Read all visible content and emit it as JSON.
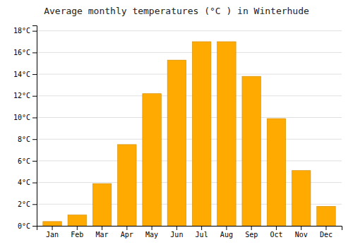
{
  "chart_data": {
    "type": "bar",
    "title": "Average monthly temperatures (°C ) in Winterhude",
    "categories": [
      "Jan",
      "Feb",
      "Mar",
      "Apr",
      "May",
      "Jun",
      "Jul",
      "Aug",
      "Sep",
      "Oct",
      "Nov",
      "Dec"
    ],
    "values": [
      0.4,
      1.0,
      3.9,
      7.5,
      12.2,
      15.3,
      17.0,
      17.0,
      13.8,
      9.9,
      5.1,
      1.8
    ],
    "color": "#FFAA00",
    "ylim": [
      0,
      18.5
    ],
    "yticks": [
      {
        "value": 0,
        "label": "0°C"
      },
      {
        "value": 2,
        "label": "2°C"
      },
      {
        "value": 4,
        "label": "4°C"
      },
      {
        "value": 6,
        "label": "6°C"
      },
      {
        "value": 8,
        "label": "8°C"
      },
      {
        "value": 10,
        "label": "10°C"
      },
      {
        "value": 12,
        "label": "12°C"
      },
      {
        "value": 14,
        "label": "14°C"
      },
      {
        "value": 16,
        "label": "16°C"
      },
      {
        "value": 18,
        "label": "18°C"
      }
    ],
    "grid": true
  }
}
